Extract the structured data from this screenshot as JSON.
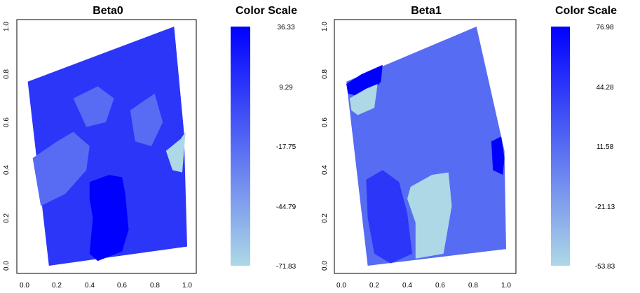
{
  "chart_data": [
    {
      "type": "heatmap",
      "title": "Beta0",
      "xlim": [
        0,
        1
      ],
      "ylim": [
        0,
        1
      ],
      "x_ticks": [
        "0.0",
        "0.2",
        "0.4",
        "0.6",
        "0.8",
        "1.0"
      ],
      "y_ticks": [
        "0.0",
        "0.2",
        "0.4",
        "0.6",
        "0.8",
        "1.0"
      ],
      "region_outline": [
        [
          0.15,
          0.0
        ],
        [
          1.0,
          0.08
        ],
        [
          0.98,
          0.56
        ],
        [
          0.92,
          1.0
        ],
        [
          0.02,
          0.77
        ]
      ],
      "base_value": 9.29,
      "patches": [
        {
          "value": 36.33,
          "polygon": [
            [
              0.4,
              0.35
            ],
            [
              0.52,
              0.38
            ],
            [
              0.6,
              0.37
            ],
            [
              0.62,
              0.3
            ],
            [
              0.64,
              0.15
            ],
            [
              0.6,
              0.06
            ],
            [
              0.45,
              0.02
            ],
            [
              0.4,
              0.05
            ],
            [
              0.42,
              0.2
            ],
            [
              0.4,
              0.28
            ]
          ]
        },
        {
          "value": -71.83,
          "polygon": [
            [
              0.87,
              0.48
            ],
            [
              0.96,
              0.53
            ],
            [
              0.99,
              0.56
            ],
            [
              0.97,
              0.39
            ],
            [
              0.91,
              0.4
            ]
          ]
        },
        {
          "value": -17.75,
          "polygon": [
            [
              0.05,
              0.45
            ],
            [
              0.2,
              0.52
            ],
            [
              0.3,
              0.56
            ],
            [
              0.4,
              0.5
            ],
            [
              0.38,
              0.4
            ],
            [
              0.25,
              0.3
            ],
            [
              0.1,
              0.25
            ]
          ]
        },
        {
          "value": -17.75,
          "polygon": [
            [
              0.3,
              0.7
            ],
            [
              0.45,
              0.75
            ],
            [
              0.55,
              0.7
            ],
            [
              0.5,
              0.6
            ],
            [
              0.38,
              0.58
            ]
          ]
        },
        {
          "value": -17.75,
          "polygon": [
            [
              0.65,
              0.65
            ],
            [
              0.8,
              0.72
            ],
            [
              0.85,
              0.6
            ],
            [
              0.78,
              0.5
            ],
            [
              0.68,
              0.52
            ]
          ]
        }
      ],
      "colorbar": {
        "title": "Color Scale",
        "min": -71.83,
        "max": 36.33,
        "min_color": "#add8e6",
        "max_color": "#0000ff",
        "tick_labels": [
          "36.33",
          "9.29",
          "-17.75",
          "-44.79",
          "-71.83"
        ]
      }
    },
    {
      "type": "heatmap",
      "title": "Beta1",
      "xlim": [
        0,
        1
      ],
      "ylim": [
        0,
        1
      ],
      "x_ticks": [
        "0.0",
        "0.2",
        "0.4",
        "0.6",
        "0.8",
        "1.0"
      ],
      "y_ticks": [
        "0.0",
        "0.2",
        "0.4",
        "0.6",
        "0.8",
        "1.0"
      ],
      "region_outline": [
        [
          0.16,
          0.0
        ],
        [
          1.0,
          0.07
        ],
        [
          0.99,
          0.48
        ],
        [
          0.82,
          1.0
        ],
        [
          0.03,
          0.77
        ]
      ],
      "base_value": 11.58,
      "patches": [
        {
          "value": 76.98,
          "polygon": [
            [
              0.03,
              0.76
            ],
            [
              0.12,
              0.8
            ],
            [
              0.25,
              0.84
            ],
            [
              0.24,
              0.77
            ],
            [
              0.18,
              0.72
            ],
            [
              0.1,
              0.71
            ],
            [
              0.04,
              0.72
            ]
          ]
        },
        {
          "value": -53.83,
          "polygon": [
            [
              0.05,
              0.7
            ],
            [
              0.15,
              0.74
            ],
            [
              0.22,
              0.76
            ],
            [
              0.2,
              0.66
            ],
            [
              0.1,
              0.63
            ],
            [
              0.06,
              0.65
            ]
          ]
        },
        {
          "value": 76.98,
          "polygon": [
            [
              0.91,
              0.52
            ],
            [
              0.97,
              0.54
            ],
            [
              0.99,
              0.45
            ],
            [
              0.98,
              0.38
            ],
            [
              0.92,
              0.4
            ]
          ]
        },
        {
          "value": -53.83,
          "polygon": [
            [
              0.42,
              0.33
            ],
            [
              0.55,
              0.38
            ],
            [
              0.65,
              0.39
            ],
            [
              0.67,
              0.25
            ],
            [
              0.62,
              0.05
            ],
            [
              0.45,
              0.03
            ],
            [
              0.45,
              0.18
            ],
            [
              0.4,
              0.28
            ]
          ]
        },
        {
          "value": 44.28,
          "polygon": [
            [
              0.15,
              0.36
            ],
            [
              0.25,
              0.4
            ],
            [
              0.35,
              0.35
            ],
            [
              0.4,
              0.22
            ],
            [
              0.43,
              0.05
            ],
            [
              0.3,
              0.01
            ],
            [
              0.2,
              0.05
            ],
            [
              0.16,
              0.2
            ]
          ]
        }
      ],
      "colorbar": {
        "title": "Color Scale",
        "min": -53.83,
        "max": 76.98,
        "min_color": "#add8e6",
        "max_color": "#0000ff",
        "tick_labels": [
          "76.98",
          "44.28",
          "11.58",
          "-21.13",
          "-53.83"
        ]
      }
    }
  ]
}
